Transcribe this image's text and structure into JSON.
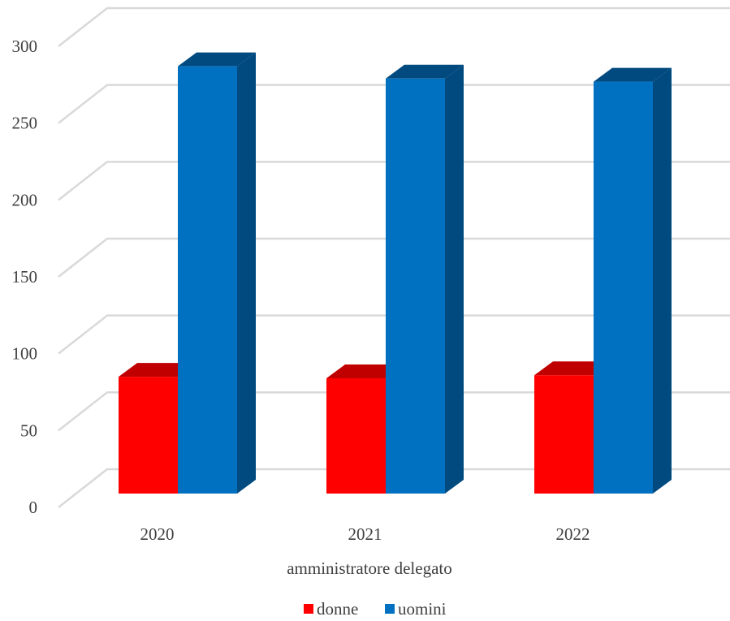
{
  "chart_data": {
    "type": "bar",
    "style": "3d-clustered-column",
    "categories": [
      "2020",
      "2021",
      "2022"
    ],
    "series": [
      {
        "name": "donne",
        "values": [
          76,
          75,
          77
        ],
        "color": "#ff0000",
        "side_color": "#c00000"
      },
      {
        "name": "uomini",
        "values": [
          278,
          270,
          268
        ],
        "color": "#0070c0",
        "side_color": "#004a80"
      }
    ],
    "xlabel": "amministratore delegato",
    "ylabel": "",
    "ylim": [
      0,
      300
    ],
    "yticks": [
      "0",
      "50",
      "100",
      "150",
      "200",
      "250",
      "300"
    ],
    "grid": true,
    "legend_position": "bottom"
  }
}
